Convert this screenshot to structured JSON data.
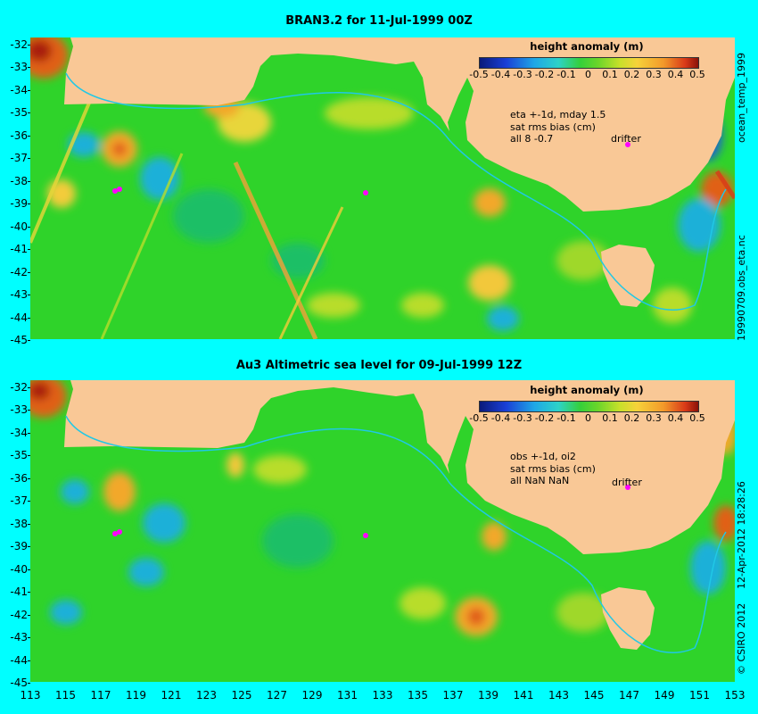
{
  "panels": {
    "top": {
      "title": "BRAN3.2 for 11-Jul-1999 00Z",
      "colorbar_title": "height anomaly (m)",
      "stats_text": "eta +-1d, mday 1.5\nsat rms bias (cm)\nall 8 -0.7",
      "drifter_label": "drifter"
    },
    "bottom": {
      "title": "Au3 Altimetric sea level  for 09-Jul-1999 12Z",
      "colorbar_title": "height anomaly (m)",
      "stats_text": "obs +-1d, oi2\nsat rms bias (cm)\nall NaN NaN",
      "drifter_label": "drifter"
    }
  },
  "colorbar_ticks": [
    "-0.5",
    "-0.4",
    "-0.3",
    "-0.2",
    "-0.1",
    "0",
    "0.1",
    "0.2",
    "0.3",
    "0.4",
    "0.5"
  ],
  "colorbar_values": [
    -0.5,
    -0.4,
    -0.3,
    -0.2,
    -0.1,
    0,
    0.1,
    0.2,
    0.3,
    0.4,
    0.5
  ],
  "latitude_labels": [
    "-32",
    "-33",
    "-34",
    "-35",
    "-36",
    "-37",
    "-38",
    "-39",
    "-40",
    "-41",
    "-42",
    "-43",
    "-44",
    "-45"
  ],
  "longitude_labels": [
    "113",
    "115",
    "117",
    "119",
    "121",
    "123",
    "125",
    "127",
    "129",
    "131",
    "133",
    "135",
    "137",
    "139",
    "141",
    "143",
    "145",
    "147",
    "149",
    "151",
    "153"
  ],
  "side_text": {
    "product": "ocean_temp_1999",
    "file": "19990709.obs_eta.nc",
    "credit": "© CSIRO 2012",
    "timestamp": "12-Apr-2012 18:28:26"
  },
  "colors": {
    "land": "#f9c896",
    "ocean_base": "#2fd32a",
    "background": "#00ffff",
    "coast_line": "#20c8e6",
    "drifter_marker": "#ff00ff"
  }
}
